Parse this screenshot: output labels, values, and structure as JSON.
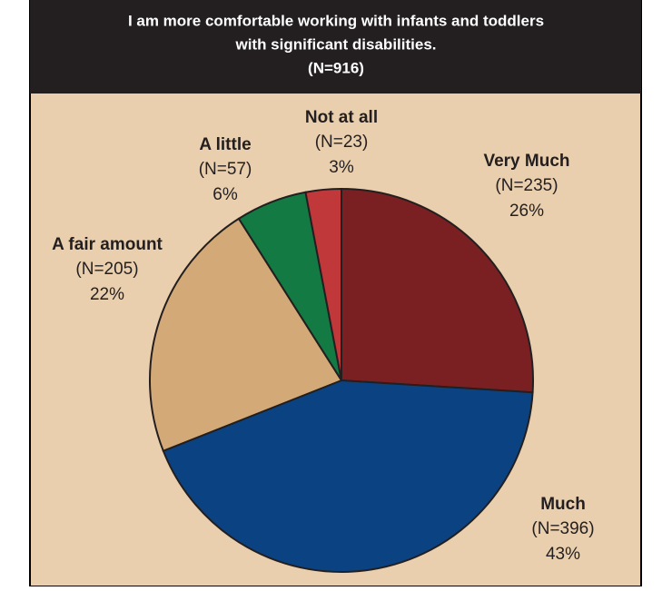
{
  "chart_data": {
    "type": "pie",
    "title": [
      "I am more comfortable working with infants and toddlers",
      "with significant disabilities."
    ],
    "subtitle": "(N=916)",
    "categories": [
      "Very Much",
      "Much",
      "A fair amount",
      "A little",
      "Not at all"
    ],
    "values": [
      26,
      43,
      22,
      6,
      3
    ],
    "value_labels": [
      "26%",
      "43%",
      "22%",
      "6%",
      "3%"
    ],
    "counts": [
      235,
      396,
      205,
      57,
      23
    ],
    "count_labels": [
      "(N=235)",
      "(N=396)",
      "(N=205)",
      "(N=57)",
      "(N=23)"
    ],
    "colors": [
      "#7a2022",
      "#0b4382",
      "#d3aa77",
      "#137a43",
      "#c1383a"
    ]
  }
}
